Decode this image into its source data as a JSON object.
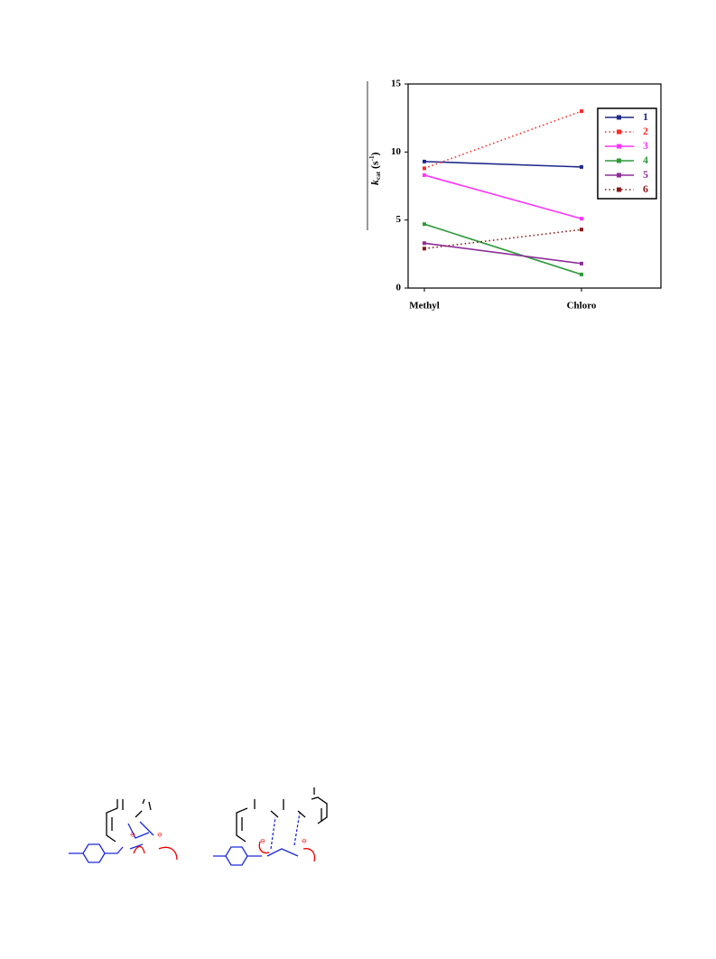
{
  "chart_data": {
    "type": "line",
    "y_label": {
      "symbol": "k",
      "subscript": "cat",
      "unit": "(s",
      "superscript": "-1",
      "close": ")"
    },
    "categories": [
      "Methyl",
      "Chloro"
    ],
    "series": [
      {
        "name": "1",
        "color": "#1f2a8a",
        "dash": "solid",
        "values": [
          9.3,
          8.9
        ]
      },
      {
        "name": "2",
        "color": "#ff2a2a",
        "dash": "dotted",
        "values": [
          8.8,
          13.0
        ]
      },
      {
        "name": "3",
        "color": "#ff33ff",
        "dash": "solid",
        "values": [
          8.3,
          5.1
        ]
      },
      {
        "name": "4",
        "color": "#2e9a3a",
        "dash": "solid",
        "values": [
          4.7,
          1.0
        ]
      },
      {
        "name": "5",
        "color": "#8e2c9a",
        "dash": "solid",
        "values": [
          3.3,
          1.8
        ]
      },
      {
        "name": "6",
        "color": "#8b1a1a",
        "dash": "dotted",
        "values": [
          2.9,
          4.3
        ]
      }
    ],
    "ylim": [
      0,
      15
    ],
    "yticks": [
      0,
      5,
      10,
      15
    ],
    "legend": "upper right"
  }
}
